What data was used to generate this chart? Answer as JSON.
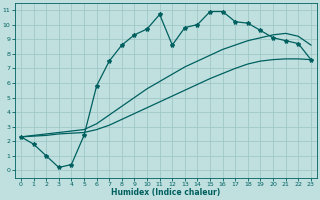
{
  "xlabel": "Humidex (Indice chaleur)",
  "ylabel": "",
  "xlim": [
    -0.5,
    23.5
  ],
  "ylim": [
    -0.5,
    11.5
  ],
  "bg_color": "#c0e0e0",
  "grid_color": "#a0c8c8",
  "line_color": "#006060",
  "xticks": [
    0,
    1,
    2,
    3,
    4,
    5,
    6,
    7,
    8,
    9,
    10,
    11,
    12,
    13,
    14,
    15,
    16,
    17,
    18,
    19,
    20,
    21,
    22,
    23
  ],
  "yticks": [
    0,
    1,
    2,
    3,
    4,
    5,
    6,
    7,
    8,
    9,
    10,
    11
  ],
  "line1_x": [
    0,
    1,
    2,
    3,
    4,
    5,
    6,
    7,
    8,
    9,
    10,
    11,
    12,
    13,
    14,
    15,
    16,
    17,
    18,
    19,
    20,
    21,
    22,
    23
  ],
  "line1_y": [
    2.3,
    1.8,
    1.0,
    0.2,
    0.4,
    2.4,
    5.8,
    7.5,
    8.6,
    9.3,
    9.7,
    10.7,
    8.6,
    9.8,
    10.0,
    10.9,
    10.9,
    10.2,
    10.1,
    9.6,
    9.1,
    8.9,
    8.7,
    7.6
  ],
  "line2_x": [
    0,
    1,
    2,
    3,
    4,
    5,
    6,
    7,
    8,
    9,
    10,
    11,
    12,
    13,
    14,
    15,
    16,
    17,
    18,
    19,
    20,
    21,
    22,
    23
  ],
  "line2_y": [
    2.3,
    2.35,
    2.4,
    2.5,
    2.55,
    2.6,
    2.8,
    3.1,
    3.5,
    3.9,
    4.3,
    4.7,
    5.1,
    5.5,
    5.9,
    6.3,
    6.65,
    7.0,
    7.3,
    7.5,
    7.6,
    7.65,
    7.65,
    7.6
  ],
  "line3_x": [
    0,
    1,
    2,
    3,
    4,
    5,
    6,
    7,
    8,
    9,
    10,
    11,
    12,
    13,
    14,
    15,
    16,
    17,
    18,
    19,
    20,
    21,
    22,
    23
  ],
  "line3_y": [
    2.3,
    2.4,
    2.5,
    2.6,
    2.7,
    2.8,
    3.2,
    3.8,
    4.4,
    5.0,
    5.6,
    6.1,
    6.6,
    7.1,
    7.5,
    7.9,
    8.3,
    8.6,
    8.9,
    9.1,
    9.3,
    9.4,
    9.2,
    8.6
  ],
  "marker_style": "*",
  "marker_size": 3,
  "line_width": 0.9
}
